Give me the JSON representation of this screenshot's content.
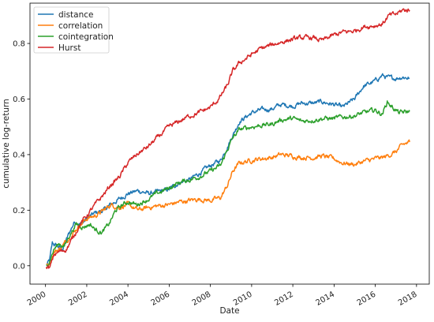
{
  "chart_data": {
    "type": "line",
    "title": "",
    "xlabel": "Date",
    "ylabel": "cumulative log-return",
    "xlim": [
      "1999-04-01",
      "2018-08-15"
    ],
    "ylim": [
      -0.066,
      0.945
    ],
    "x_ticks": [
      {
        "date": "2000-01-01",
        "label": "2000"
      },
      {
        "date": "2002-01-01",
        "label": "2002"
      },
      {
        "date": "2004-01-01",
        "label": "2004"
      },
      {
        "date": "2006-01-01",
        "label": "2006"
      },
      {
        "date": "2008-01-01",
        "label": "2008"
      },
      {
        "date": "2010-01-01",
        "label": "2010"
      },
      {
        "date": "2012-01-01",
        "label": "2012"
      },
      {
        "date": "2014-01-01",
        "label": "2014"
      },
      {
        "date": "2016-01-01",
        "label": "2016"
      },
      {
        "date": "2018-01-01",
        "label": "2018"
      }
    ],
    "y_ticks": [
      {
        "value": 0.0,
        "label": "0.0"
      },
      {
        "value": 0.2,
        "label": "0.2"
      },
      {
        "value": 0.4,
        "label": "0.4"
      },
      {
        "value": 0.6,
        "label": "0.6"
      },
      {
        "value": 0.8,
        "label": "0.8"
      }
    ],
    "grid": false,
    "legend_position": "top-left",
    "series": [
      {
        "name": "distance",
        "color": "#1f77b4",
        "points": [
          [
            "2000-01-15",
            0.0
          ],
          [
            "2000-03-15",
            0.02
          ],
          [
            "2000-05-01",
            0.08
          ],
          [
            "2000-08-01",
            0.07
          ],
          [
            "2000-11-01",
            0.06
          ],
          [
            "2001-03-01",
            0.12
          ],
          [
            "2001-06-01",
            0.16
          ],
          [
            "2001-10-01",
            0.15
          ],
          [
            "2002-01-01",
            0.17
          ],
          [
            "2002-06-01",
            0.19
          ],
          [
            "2002-11-01",
            0.2
          ],
          [
            "2003-03-01",
            0.22
          ],
          [
            "2003-08-01",
            0.24
          ],
          [
            "2004-01-01",
            0.26
          ],
          [
            "2004-07-01",
            0.27
          ],
          [
            "2005-01-01",
            0.26
          ],
          [
            "2005-06-01",
            0.265
          ],
          [
            "2006-01-01",
            0.275
          ],
          [
            "2006-07-01",
            0.3
          ],
          [
            "2007-01-01",
            0.31
          ],
          [
            "2007-06-01",
            0.33
          ],
          [
            "2008-01-01",
            0.36
          ],
          [
            "2008-07-01",
            0.38
          ],
          [
            "2008-11-01",
            0.43
          ],
          [
            "2009-02-01",
            0.47
          ],
          [
            "2009-06-01",
            0.52
          ],
          [
            "2010-01-01",
            0.55
          ],
          [
            "2010-06-01",
            0.56
          ],
          [
            "2011-01-01",
            0.565
          ],
          [
            "2011-06-01",
            0.58
          ],
          [
            "2012-01-01",
            0.575
          ],
          [
            "2012-06-01",
            0.585
          ],
          [
            "2013-01-01",
            0.585
          ],
          [
            "2013-06-01",
            0.59
          ],
          [
            "2014-01-01",
            0.58
          ],
          [
            "2014-06-01",
            0.57
          ],
          [
            "2015-01-01",
            0.6
          ],
          [
            "2015-06-01",
            0.645
          ],
          [
            "2016-01-01",
            0.665
          ],
          [
            "2016-05-01",
            0.685
          ],
          [
            "2016-09-01",
            0.675
          ],
          [
            "2017-01-01",
            0.675
          ],
          [
            "2017-05-01",
            0.68
          ],
          [
            "2017-09-01",
            0.675
          ]
        ]
      },
      {
        "name": "correlation",
        "color": "#ff7f0e",
        "points": [
          [
            "2000-01-15",
            0.0
          ],
          [
            "2000-03-15",
            0.01
          ],
          [
            "2000-06-01",
            0.05
          ],
          [
            "2000-09-01",
            0.06
          ],
          [
            "2000-12-01",
            0.08
          ],
          [
            "2001-04-01",
            0.11
          ],
          [
            "2001-08-01",
            0.14
          ],
          [
            "2002-01-01",
            0.17
          ],
          [
            "2002-06-01",
            0.18
          ],
          [
            "2002-11-01",
            0.2
          ],
          [
            "2003-03-01",
            0.22
          ],
          [
            "2003-08-01",
            0.21
          ],
          [
            "2004-01-01",
            0.22
          ],
          [
            "2004-07-01",
            0.2
          ],
          [
            "2005-01-01",
            0.21
          ],
          [
            "2005-06-01",
            0.215
          ],
          [
            "2006-01-01",
            0.22
          ],
          [
            "2006-07-01",
            0.23
          ],
          [
            "2007-01-01",
            0.235
          ],
          [
            "2007-06-01",
            0.24
          ],
          [
            "2008-01-01",
            0.235
          ],
          [
            "2008-07-01",
            0.245
          ],
          [
            "2008-11-01",
            0.29
          ],
          [
            "2009-02-01",
            0.34
          ],
          [
            "2009-06-01",
            0.37
          ],
          [
            "2010-01-01",
            0.38
          ],
          [
            "2010-06-01",
            0.385
          ],
          [
            "2011-01-01",
            0.39
          ],
          [
            "2011-06-01",
            0.4
          ],
          [
            "2012-01-01",
            0.395
          ],
          [
            "2012-06-01",
            0.39
          ],
          [
            "2013-01-01",
            0.39
          ],
          [
            "2013-06-01",
            0.395
          ],
          [
            "2014-01-01",
            0.385
          ],
          [
            "2014-06-01",
            0.37
          ],
          [
            "2015-01-01",
            0.365
          ],
          [
            "2015-06-01",
            0.375
          ],
          [
            "2016-01-01",
            0.385
          ],
          [
            "2016-06-01",
            0.39
          ],
          [
            "2017-01-01",
            0.41
          ],
          [
            "2017-05-01",
            0.435
          ],
          [
            "2017-09-01",
            0.445
          ]
        ]
      },
      {
        "name": "cointegration",
        "color": "#2ca02c",
        "points": [
          [
            "2000-01-15",
            0.0
          ],
          [
            "2000-03-15",
            0.02
          ],
          [
            "2000-06-01",
            0.06
          ],
          [
            "2000-09-01",
            0.08
          ],
          [
            "2000-12-01",
            0.07
          ],
          [
            "2001-03-01",
            0.11
          ],
          [
            "2001-07-01",
            0.15
          ],
          [
            "2001-11-01",
            0.14
          ],
          [
            "2002-03-01",
            0.15
          ],
          [
            "2002-06-01",
            0.13
          ],
          [
            "2002-10-01",
            0.12
          ],
          [
            "2003-02-01",
            0.15
          ],
          [
            "2003-06-01",
            0.2
          ],
          [
            "2003-10-01",
            0.22
          ],
          [
            "2004-01-01",
            0.23
          ],
          [
            "2004-06-01",
            0.22
          ],
          [
            "2005-01-01",
            0.24
          ],
          [
            "2005-06-01",
            0.26
          ],
          [
            "2006-01-01",
            0.28
          ],
          [
            "2006-07-01",
            0.3
          ],
          [
            "2007-01-01",
            0.31
          ],
          [
            "2007-06-01",
            0.32
          ],
          [
            "2008-01-01",
            0.34
          ],
          [
            "2008-07-01",
            0.36
          ],
          [
            "2008-11-01",
            0.42
          ],
          [
            "2009-02-01",
            0.46
          ],
          [
            "2009-06-01",
            0.49
          ],
          [
            "2010-01-01",
            0.5
          ],
          [
            "2010-06-01",
            0.505
          ],
          [
            "2011-01-01",
            0.51
          ],
          [
            "2011-06-01",
            0.525
          ],
          [
            "2012-01-01",
            0.53
          ],
          [
            "2012-06-01",
            0.52
          ],
          [
            "2013-01-01",
            0.525
          ],
          [
            "2013-06-01",
            0.53
          ],
          [
            "2014-01-01",
            0.53
          ],
          [
            "2014-06-01",
            0.535
          ],
          [
            "2015-01-01",
            0.54
          ],
          [
            "2015-06-01",
            0.55
          ],
          [
            "2016-01-01",
            0.56
          ],
          [
            "2016-05-01",
            0.545
          ],
          [
            "2016-08-01",
            0.59
          ],
          [
            "2016-11-01",
            0.57
          ],
          [
            "2017-03-01",
            0.55
          ],
          [
            "2017-09-01",
            0.555
          ]
        ]
      },
      {
        "name": "Hurst",
        "color": "#d62728",
        "points": [
          [
            "2000-01-15",
            0.0
          ],
          [
            "2000-03-15",
            -0.01
          ],
          [
            "2000-06-01",
            0.04
          ],
          [
            "2000-09-01",
            0.05
          ],
          [
            "2001-01-01",
            0.06
          ],
          [
            "2001-05-01",
            0.1
          ],
          [
            "2001-09-01",
            0.15
          ],
          [
            "2002-01-01",
            0.18
          ],
          [
            "2002-06-01",
            0.22
          ],
          [
            "2002-10-01",
            0.25
          ],
          [
            "2003-03-01",
            0.29
          ],
          [
            "2003-08-01",
            0.32
          ],
          [
            "2004-01-01",
            0.37
          ],
          [
            "2004-06-01",
            0.4
          ],
          [
            "2005-01-01",
            0.43
          ],
          [
            "2005-06-01",
            0.46
          ],
          [
            "2006-01-01",
            0.5
          ],
          [
            "2006-07-01",
            0.52
          ],
          [
            "2007-01-01",
            0.54
          ],
          [
            "2007-06-01",
            0.55
          ],
          [
            "2008-01-01",
            0.57
          ],
          [
            "2008-06-01",
            0.6
          ],
          [
            "2008-11-01",
            0.65
          ],
          [
            "2009-02-01",
            0.7
          ],
          [
            "2009-06-01",
            0.73
          ],
          [
            "2010-01-01",
            0.76
          ],
          [
            "2010-06-01",
            0.78
          ],
          [
            "2011-01-01",
            0.795
          ],
          [
            "2011-06-01",
            0.805
          ],
          [
            "2012-01-01",
            0.815
          ],
          [
            "2012-06-01",
            0.82
          ],
          [
            "2013-01-01",
            0.82
          ],
          [
            "2013-06-01",
            0.81
          ],
          [
            "2014-01-01",
            0.83
          ],
          [
            "2014-06-01",
            0.84
          ],
          [
            "2015-01-01",
            0.845
          ],
          [
            "2015-06-01",
            0.86
          ],
          [
            "2016-01-01",
            0.865
          ],
          [
            "2016-05-01",
            0.87
          ],
          [
            "2016-09-01",
            0.9
          ],
          [
            "2017-01-01",
            0.905
          ],
          [
            "2017-05-01",
            0.92
          ],
          [
            "2017-09-01",
            0.92
          ]
        ]
      }
    ]
  }
}
